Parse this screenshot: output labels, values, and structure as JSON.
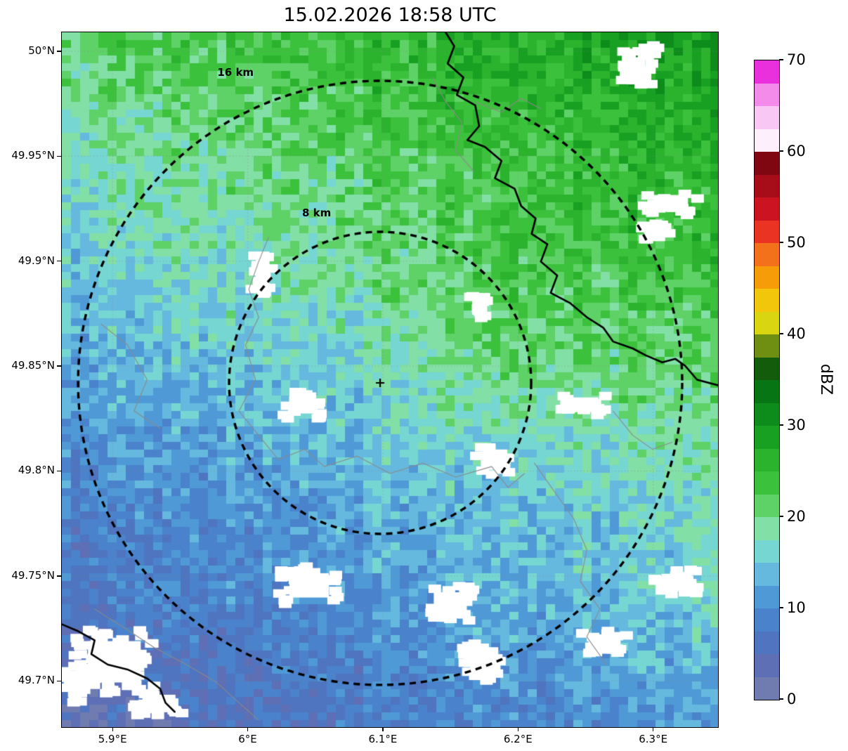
{
  "chart_data": {
    "type": "heatmap",
    "title": "15.02.2026 18:58 UTC",
    "xlim": [
      5.8625,
      6.348
    ],
    "ylim": [
      49.678,
      50.009
    ],
    "x_ticks": [
      {
        "value": 5.9,
        "label": "5.9°E"
      },
      {
        "value": 6.0,
        "label": "6°E"
      },
      {
        "value": 6.1,
        "label": "6.1°E"
      },
      {
        "value": 6.2,
        "label": "6.2°E"
      },
      {
        "value": 6.3,
        "label": "6.3°E"
      }
    ],
    "y_ticks": [
      {
        "value": 50.0,
        "label": "50°N"
      },
      {
        "value": 49.95,
        "label": "49.95°N"
      },
      {
        "value": 49.9,
        "label": "49.9°N"
      },
      {
        "value": 49.85,
        "label": "49.85°N"
      },
      {
        "value": 49.8,
        "label": "49.8°N"
      },
      {
        "value": 49.75,
        "label": "49.75°N"
      },
      {
        "value": 49.7,
        "label": "49.7°N"
      }
    ],
    "colorbar": {
      "label": "dBZ",
      "ticks": [
        0,
        10,
        20,
        30,
        40,
        50,
        60,
        70
      ],
      "min": 0,
      "max": 70,
      "step": 2.5,
      "colors": [
        "#707bb0",
        "#5e6fb5",
        "#4f74c0",
        "#4a82cc",
        "#4f9ad6",
        "#65b9de",
        "#76d6d2",
        "#82dfa6",
        "#5ed167",
        "#3cc13c",
        "#2bb32e",
        "#17a022",
        "#0d8c1b",
        "#077514",
        "#135c0c",
        "#6f8f12",
        "#d9d611",
        "#f2c70b",
        "#f59c08",
        "#f2711a",
        "#ea3323",
        "#cc1420",
        "#a60d18",
        "#7e0711",
        "#fdeffb",
        "#f9c7f3",
        "#f48ae9",
        "#ea30dd"
      ]
    },
    "radar_center": {
      "lon": 6.098,
      "lat": 49.842,
      "marker": "+"
    },
    "range_rings": [
      {
        "radius_km": 8,
        "label": "8 km"
      },
      {
        "radius_km": 16,
        "label": "16 km"
      }
    ],
    "annotations": [
      {
        "text": "16 km",
        "lon": 5.991,
        "lat": 49.99
      },
      {
        "text": "8 km",
        "lon": 6.051,
        "lat": 49.923
      }
    ],
    "field": {
      "units": "dBZ",
      "grid_rows_north_to_south": 11,
      "grid_cols_west_to_east": 10,
      "values_grid": [
        [
          21,
          22,
          23,
          24,
          25,
          26,
          27,
          28,
          29,
          30
        ],
        [
          19,
          20,
          21,
          22,
          23,
          24,
          25,
          26,
          27,
          28
        ],
        [
          17,
          18,
          19,
          20,
          21,
          22,
          23,
          24,
          25,
          26
        ],
        [
          16,
          17,
          18,
          19,
          20,
          21,
          23,
          24,
          24,
          25
        ],
        [
          14,
          15,
          16,
          17,
          18,
          20,
          22,
          22,
          22,
          23
        ],
        [
          12,
          13,
          14,
          15,
          16,
          18,
          20,
          20,
          20,
          21
        ],
        [
          10,
          11,
          12,
          13,
          14,
          15,
          16,
          17,
          18,
          19
        ],
        [
          8,
          9,
          10,
          11,
          12,
          13,
          14,
          15,
          16,
          17
        ],
        [
          7,
          8,
          9,
          10,
          11,
          12,
          13,
          14,
          15,
          16
        ],
        [
          5,
          6,
          7,
          8,
          9,
          10,
          11,
          12,
          13,
          14
        ],
        [
          3,
          4,
          5,
          6,
          7,
          8,
          9,
          10,
          11,
          12
        ]
      ],
      "noise_amplitude_dbz": 3.0,
      "no_data_color": "#ffffff",
      "no_data_patches": [
        {
          "x": 0.872,
          "y": 0.052,
          "w": 0.05,
          "h": 0.045
        },
        {
          "x": 0.897,
          "y": 0.027,
          "w": 0.022,
          "h": 0.02
        },
        {
          "x": 0.928,
          "y": 0.246,
          "w": 0.075,
          "h": 0.034
        },
        {
          "x": 0.903,
          "y": 0.285,
          "w": 0.045,
          "h": 0.024
        },
        {
          "x": 0.306,
          "y": 0.347,
          "w": 0.03,
          "h": 0.055
        },
        {
          "x": 0.636,
          "y": 0.396,
          "w": 0.03,
          "h": 0.03
        },
        {
          "x": 0.366,
          "y": 0.536,
          "w": 0.056,
          "h": 0.036
        },
        {
          "x": 0.796,
          "y": 0.536,
          "w": 0.062,
          "h": 0.03
        },
        {
          "x": 0.657,
          "y": 0.617,
          "w": 0.046,
          "h": 0.036
        },
        {
          "x": 0.377,
          "y": 0.796,
          "w": 0.086,
          "h": 0.05
        },
        {
          "x": 0.592,
          "y": 0.822,
          "w": 0.072,
          "h": 0.046
        },
        {
          "x": 0.642,
          "y": 0.906,
          "w": 0.056,
          "h": 0.05
        },
        {
          "x": 0.827,
          "y": 0.877,
          "w": 0.07,
          "h": 0.03
        },
        {
          "x": 0.937,
          "y": 0.792,
          "w": 0.066,
          "h": 0.036
        },
        {
          "x": 0.08,
          "y": 0.906,
          "w": 0.115,
          "h": 0.085
        },
        {
          "x": 0.148,
          "y": 0.966,
          "w": 0.072,
          "h": 0.036
        },
        {
          "x": 0.024,
          "y": 0.942,
          "w": 0.042,
          "h": 0.042
        }
      ]
    },
    "overlays": {
      "grid_style": "dotted",
      "thin_line_color": "#8a8a8a",
      "border_color": "#000000",
      "thick_borders": [
        [
          [
            0.585,
            0.0
          ],
          [
            0.598,
            0.02
          ],
          [
            0.588,
            0.045
          ],
          [
            0.612,
            0.065
          ],
          [
            0.602,
            0.09
          ],
          [
            0.63,
            0.105
          ],
          [
            0.636,
            0.135
          ],
          [
            0.618,
            0.155
          ],
          [
            0.645,
            0.165
          ],
          [
            0.67,
            0.185
          ],
          [
            0.66,
            0.21
          ],
          [
            0.69,
            0.225
          ],
          [
            0.7,
            0.25
          ],
          [
            0.722,
            0.268
          ],
          [
            0.716,
            0.29
          ],
          [
            0.74,
            0.305
          ],
          [
            0.73,
            0.33
          ],
          [
            0.755,
            0.35
          ],
          [
            0.745,
            0.375
          ],
          [
            0.775,
            0.39
          ],
          [
            0.8,
            0.41
          ],
          [
            0.825,
            0.425
          ],
          [
            0.84,
            0.445
          ],
          [
            0.87,
            0.455
          ],
          [
            0.89,
            0.465
          ],
          [
            0.915,
            0.475
          ],
          [
            0.935,
            0.47
          ],
          [
            0.95,
            0.48
          ],
          [
            0.968,
            0.5
          ],
          [
            1.0,
            0.508
          ]
        ],
        [
          [
            0.0,
            0.852
          ],
          [
            0.025,
            0.862
          ],
          [
            0.05,
            0.875
          ],
          [
            0.045,
            0.895
          ],
          [
            0.07,
            0.91
          ],
          [
            0.1,
            0.917
          ],
          [
            0.13,
            0.93
          ],
          [
            0.15,
            0.945
          ],
          [
            0.158,
            0.965
          ],
          [
            0.172,
            0.978
          ]
        ]
      ],
      "thin_lines": [
        [
          [
            0.315,
            0.295
          ],
          [
            0.3,
            0.33
          ],
          [
            0.285,
            0.37
          ],
          [
            0.3,
            0.41
          ],
          [
            0.28,
            0.45
          ],
          [
            0.295,
            0.5
          ],
          [
            0.27,
            0.545
          ],
          [
            0.3,
            0.58
          ],
          [
            0.33,
            0.615
          ],
          [
            0.37,
            0.6
          ],
          [
            0.4,
            0.625
          ],
          [
            0.45,
            0.61
          ],
          [
            0.5,
            0.635
          ],
          [
            0.55,
            0.62
          ],
          [
            0.6,
            0.64
          ],
          [
            0.655,
            0.625
          ],
          [
            0.68,
            0.655
          ],
          [
            0.705,
            0.635
          ]
        ],
        [
          [
            0.565,
            0.065
          ],
          [
            0.585,
            0.1
          ],
          [
            0.61,
            0.13
          ],
          [
            0.6,
            0.17
          ],
          [
            0.628,
            0.2
          ]
        ],
        [
          [
            0.72,
            0.62
          ],
          [
            0.75,
            0.66
          ],
          [
            0.78,
            0.7
          ],
          [
            0.8,
            0.745
          ],
          [
            0.79,
            0.79
          ],
          [
            0.82,
            0.83
          ],
          [
            0.8,
            0.87
          ],
          [
            0.83,
            0.91
          ]
        ],
        [
          [
            0.05,
            0.83
          ],
          [
            0.1,
            0.86
          ],
          [
            0.14,
            0.885
          ],
          [
            0.19,
            0.91
          ],
          [
            0.235,
            0.935
          ],
          [
            0.27,
            0.965
          ],
          [
            0.3,
            0.99
          ]
        ],
        [
          [
            0.06,
            0.42
          ],
          [
            0.1,
            0.45
          ],
          [
            0.13,
            0.5
          ],
          [
            0.11,
            0.545
          ],
          [
            0.15,
            0.57
          ]
        ],
        [
          [
            0.84,
            0.545
          ],
          [
            0.87,
            0.58
          ],
          [
            0.9,
            0.6
          ],
          [
            0.93,
            0.59
          ]
        ],
        [
          [
            0.63,
            0.1
          ],
          [
            0.67,
            0.115
          ],
          [
            0.7,
            0.095
          ],
          [
            0.73,
            0.11
          ]
        ]
      ]
    }
  }
}
